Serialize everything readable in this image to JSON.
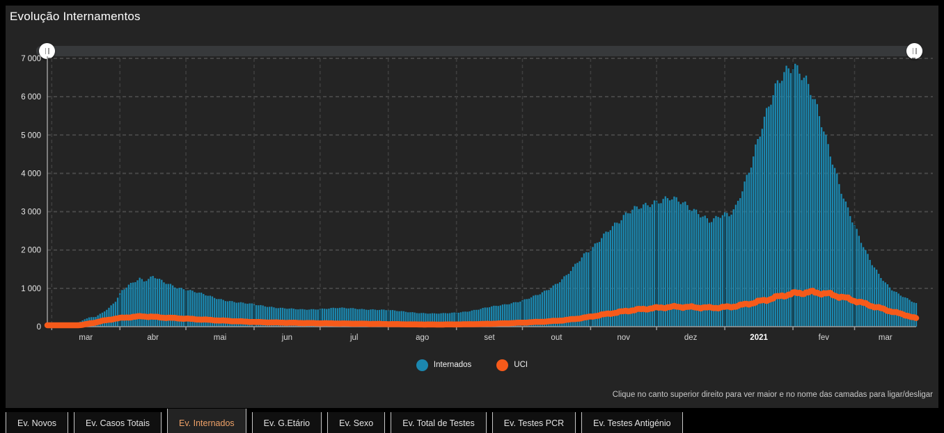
{
  "panel": {
    "title": "Evolução Internamentos"
  },
  "legend": {
    "items": [
      {
        "label": "Internados",
        "color": "#1b87af"
      },
      {
        "label": "UCI",
        "color": "#f65a1a"
      }
    ]
  },
  "hint": "Clique no canto superior direito para ver maior e no nome das camadas para ligar/desligar",
  "tabs": {
    "active_index": 2,
    "items": [
      "Ev. Novos",
      "Ev. Casos Totais",
      "Ev. Internados",
      "Ev. G.Etário",
      "Ev. Sexo",
      "Ev. Total de Testes",
      "Ev. Testes PCR",
      "Ev. Testes Antigénio"
    ]
  },
  "chart_data": {
    "type": "bar",
    "title": "Evolução Internamentos",
    "xlabel": "",
    "ylabel": "",
    "ylim": [
      0,
      7000
    ],
    "y_tick_labels": [
      "0",
      "1 000",
      "2 000",
      "3 000",
      "4 000",
      "5 000",
      "6 000",
      "7 000"
    ],
    "x_tick_labels": [
      "mar",
      "abr",
      "mai",
      "jun",
      "jul",
      "ago",
      "set",
      "out",
      "nov",
      "dez",
      "2021",
      "fev",
      "mar"
    ],
    "date_range": [
      "2020-02-28",
      "2021-03-29"
    ],
    "grid": "dashed",
    "legend_position": "bottom",
    "series": [
      {
        "name": "Internados",
        "type": "bar",
        "color": "#1b87af",
        "points": [
          [
            "2020-02-28",
            3
          ],
          [
            "2020-03-05",
            25
          ],
          [
            "2020-03-10",
            60
          ],
          [
            "2020-03-14",
            130
          ],
          [
            "2020-03-16",
            200
          ],
          [
            "2020-03-18",
            240
          ],
          [
            "2020-03-21",
            260
          ],
          [
            "2020-03-24",
            360
          ],
          [
            "2020-03-27",
            480
          ],
          [
            "2020-03-30",
            660
          ],
          [
            "2020-04-02",
            950
          ],
          [
            "2020-04-05",
            1100
          ],
          [
            "2020-04-08",
            1200
          ],
          [
            "2020-04-10",
            1260
          ],
          [
            "2020-04-12",
            1190
          ],
          [
            "2020-04-14",
            1230
          ],
          [
            "2020-04-16",
            1300
          ],
          [
            "2020-04-18",
            1250
          ],
          [
            "2020-04-21",
            1160
          ],
          [
            "2020-04-24",
            1100
          ],
          [
            "2020-04-27",
            1030
          ],
          [
            "2020-04-30",
            990
          ],
          [
            "2020-05-03",
            940
          ],
          [
            "2020-05-06",
            890
          ],
          [
            "2020-05-09",
            840
          ],
          [
            "2020-05-12",
            790
          ],
          [
            "2020-05-15",
            740
          ],
          [
            "2020-05-18",
            700
          ],
          [
            "2020-05-21",
            670
          ],
          [
            "2020-05-24",
            640
          ],
          [
            "2020-05-27",
            615
          ],
          [
            "2020-05-30",
            595
          ],
          [
            "2020-06-03",
            560
          ],
          [
            "2020-06-07",
            530
          ],
          [
            "2020-06-11",
            500
          ],
          [
            "2020-06-15",
            480
          ],
          [
            "2020-06-19",
            460
          ],
          [
            "2020-06-23",
            445
          ],
          [
            "2020-06-27",
            450
          ],
          [
            "2020-07-01",
            465
          ],
          [
            "2020-07-05",
            480
          ],
          [
            "2020-07-09",
            490
          ],
          [
            "2020-07-13",
            480
          ],
          [
            "2020-07-17",
            470
          ],
          [
            "2020-07-21",
            455
          ],
          [
            "2020-07-25",
            450
          ],
          [
            "2020-07-29",
            440
          ],
          [
            "2020-08-02",
            425
          ],
          [
            "2020-08-06",
            405
          ],
          [
            "2020-08-10",
            385
          ],
          [
            "2020-08-14",
            365
          ],
          [
            "2020-08-18",
            350
          ],
          [
            "2020-08-22",
            340
          ],
          [
            "2020-08-26",
            345
          ],
          [
            "2020-08-30",
            360
          ],
          [
            "2020-09-03",
            380
          ],
          [
            "2020-09-07",
            410
          ],
          [
            "2020-09-11",
            450
          ],
          [
            "2020-09-15",
            500
          ],
          [
            "2020-09-19",
            540
          ],
          [
            "2020-09-23",
            580
          ],
          [
            "2020-09-27",
            630
          ],
          [
            "2020-10-01",
            680
          ],
          [
            "2020-10-05",
            760
          ],
          [
            "2020-10-09",
            850
          ],
          [
            "2020-10-13",
            980
          ],
          [
            "2020-10-17",
            1150
          ],
          [
            "2020-10-21",
            1350
          ],
          [
            "2020-10-25",
            1600
          ],
          [
            "2020-10-29",
            1850
          ],
          [
            "2020-11-02",
            2050
          ],
          [
            "2020-11-06",
            2350
          ],
          [
            "2020-11-10",
            2600
          ],
          [
            "2020-11-14",
            2750
          ],
          [
            "2020-11-18",
            2950
          ],
          [
            "2020-11-22",
            3080
          ],
          [
            "2020-11-26",
            3180
          ],
          [
            "2020-11-30",
            3270
          ],
          [
            "2020-12-04",
            3330
          ],
          [
            "2020-12-07",
            3350
          ],
          [
            "2020-12-10",
            3280
          ],
          [
            "2020-12-13",
            3200
          ],
          [
            "2020-12-16",
            3100
          ],
          [
            "2020-12-19",
            3020
          ],
          [
            "2020-12-22",
            2920
          ],
          [
            "2020-12-25",
            2780
          ],
          [
            "2020-12-28",
            2820
          ],
          [
            "2020-12-31",
            2900
          ],
          [
            "2021-01-03",
            2880
          ],
          [
            "2021-01-06",
            3100
          ],
          [
            "2021-01-09",
            3600
          ],
          [
            "2021-01-12",
            4100
          ],
          [
            "2021-01-15",
            4700
          ],
          [
            "2021-01-18",
            5250
          ],
          [
            "2021-01-21",
            5700
          ],
          [
            "2021-01-24",
            6150
          ],
          [
            "2021-01-27",
            6500
          ],
          [
            "2021-01-30",
            6750
          ],
          [
            "2021-02-01",
            6870
          ],
          [
            "2021-02-04",
            6750
          ],
          [
            "2021-02-07",
            6450
          ],
          [
            "2021-02-10",
            6000
          ],
          [
            "2021-02-13",
            5450
          ],
          [
            "2021-02-16",
            4850
          ],
          [
            "2021-02-19",
            4300
          ],
          [
            "2021-02-22",
            3750
          ],
          [
            "2021-02-25",
            3250
          ],
          [
            "2021-02-28",
            2800
          ],
          [
            "2021-03-03",
            2350
          ],
          [
            "2021-03-06",
            1950
          ],
          [
            "2021-03-09",
            1620
          ],
          [
            "2021-03-12",
            1360
          ],
          [
            "2021-03-15",
            1150
          ],
          [
            "2021-03-18",
            980
          ],
          [
            "2021-03-21",
            860
          ],
          [
            "2021-03-24",
            760
          ],
          [
            "2021-03-27",
            660
          ],
          [
            "2021-03-29",
            600
          ]
        ]
      },
      {
        "name": "UCI",
        "type": "line",
        "color": "#f65a1a",
        "stroke_width": 8.5,
        "points": [
          [
            "2020-02-28",
            0
          ],
          [
            "2020-03-06",
            5
          ],
          [
            "2020-03-11",
            20
          ],
          [
            "2020-03-15",
            48
          ],
          [
            "2020-03-18",
            80
          ],
          [
            "2020-03-21",
            110
          ],
          [
            "2020-03-24",
            150
          ],
          [
            "2020-03-27",
            180
          ],
          [
            "2020-03-30",
            210
          ],
          [
            "2020-04-03",
            235
          ],
          [
            "2020-04-07",
            255
          ],
          [
            "2020-04-11",
            270
          ],
          [
            "2020-04-15",
            260
          ],
          [
            "2020-04-19",
            245
          ],
          [
            "2020-04-23",
            230
          ],
          [
            "2020-04-27",
            220
          ],
          [
            "2020-05-01",
            208
          ],
          [
            "2020-05-05",
            196
          ],
          [
            "2020-05-09",
            184
          ],
          [
            "2020-05-13",
            172
          ],
          [
            "2020-05-17",
            160
          ],
          [
            "2020-05-21",
            148
          ],
          [
            "2020-05-25",
            138
          ],
          [
            "2020-05-29",
            128
          ],
          [
            "2020-06-03",
            118
          ],
          [
            "2020-06-08",
            110
          ],
          [
            "2020-06-13",
            105
          ],
          [
            "2020-06-18",
            100
          ],
          [
            "2020-06-23",
            96
          ],
          [
            "2020-06-28",
            92
          ],
          [
            "2020-07-03",
            88
          ],
          [
            "2020-07-08",
            84
          ],
          [
            "2020-07-13",
            80
          ],
          [
            "2020-07-18",
            77
          ],
          [
            "2020-07-23",
            74
          ],
          [
            "2020-07-28",
            71
          ],
          [
            "2020-08-02",
            67
          ],
          [
            "2020-08-07",
            63
          ],
          [
            "2020-08-12",
            60
          ],
          [
            "2020-08-17",
            57
          ],
          [
            "2020-08-22",
            55
          ],
          [
            "2020-08-27",
            56
          ],
          [
            "2020-09-01",
            59
          ],
          [
            "2020-09-06",
            63
          ],
          [
            "2020-09-11",
            68
          ],
          [
            "2020-09-16",
            75
          ],
          [
            "2020-09-21",
            83
          ],
          [
            "2020-09-26",
            93
          ],
          [
            "2020-10-01",
            105
          ],
          [
            "2020-10-06",
            118
          ],
          [
            "2020-10-11",
            132
          ],
          [
            "2020-10-16",
            150
          ],
          [
            "2020-10-21",
            175
          ],
          [
            "2020-10-26",
            210
          ],
          [
            "2020-10-31",
            250
          ],
          [
            "2020-11-05",
            300
          ],
          [
            "2020-11-10",
            345
          ],
          [
            "2020-11-15",
            390
          ],
          [
            "2020-11-20",
            430
          ],
          [
            "2020-11-25",
            460
          ],
          [
            "2020-11-30",
            485
          ],
          [
            "2020-12-05",
            505
          ],
          [
            "2020-12-10",
            520
          ],
          [
            "2020-12-15",
            512
          ],
          [
            "2020-12-20",
            502
          ],
          [
            "2020-12-25",
            492
          ],
          [
            "2020-12-30",
            500
          ],
          [
            "2021-01-04",
            520
          ],
          [
            "2021-01-08",
            555
          ],
          [
            "2021-01-12",
            600
          ],
          [
            "2021-01-16",
            650
          ],
          [
            "2021-01-20",
            700
          ],
          [
            "2021-01-24",
            760
          ],
          [
            "2021-01-28",
            820
          ],
          [
            "2021-02-01",
            860
          ],
          [
            "2021-02-05",
            885
          ],
          [
            "2021-02-09",
            900
          ],
          [
            "2021-02-13",
            885
          ],
          [
            "2021-02-17",
            855
          ],
          [
            "2021-02-21",
            805
          ],
          [
            "2021-02-25",
            745
          ],
          [
            "2021-03-01",
            680
          ],
          [
            "2021-03-05",
            610
          ],
          [
            "2021-03-09",
            540
          ],
          [
            "2021-03-13",
            475
          ],
          [
            "2021-03-17",
            410
          ],
          [
            "2021-03-21",
            350
          ],
          [
            "2021-03-25",
            290
          ],
          [
            "2021-03-27",
            250
          ],
          [
            "2021-03-29",
            220
          ]
        ]
      }
    ]
  }
}
